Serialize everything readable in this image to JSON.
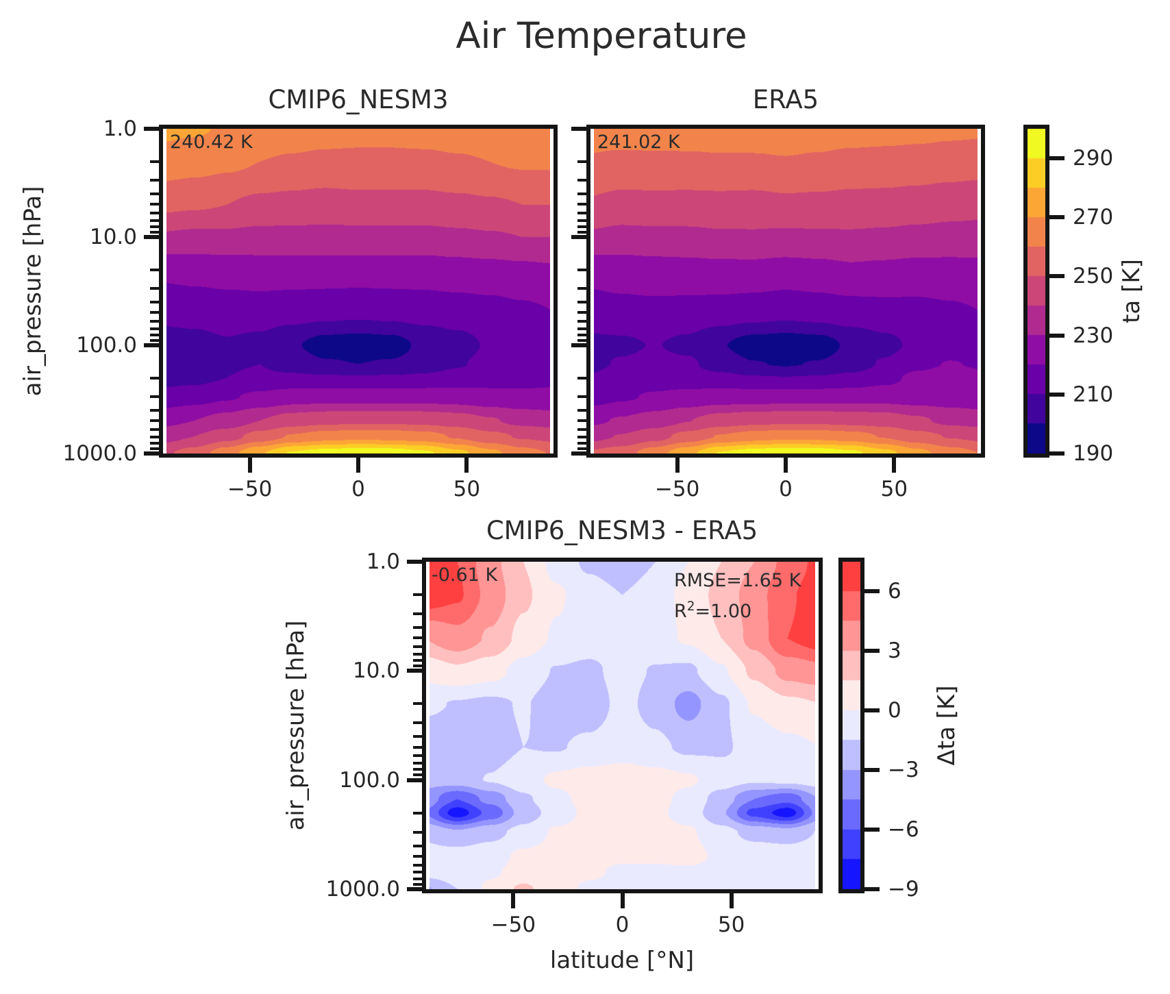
{
  "figure": {
    "title": "Air Temperature"
  },
  "axes_shared": {
    "ylabel": "air_pressure [hPa]",
    "xlabel": "latitude [°N]",
    "y_scale": "log",
    "y_tick_labels": [
      "1.0",
      "10.0",
      "100.0",
      "1000.0"
    ],
    "y_tick_values": [
      1,
      10,
      100,
      1000
    ],
    "x_tick_labels": [
      "−50",
      "0",
      "50"
    ],
    "x_tick_values": [
      -50,
      0,
      50
    ],
    "lat_range_deg": [
      -90,
      90
    ],
    "pressure_range_hpa": [
      1,
      1000
    ]
  },
  "panels": {
    "model": {
      "title": "CMIP6_NESM3",
      "mean_annotation": "240.42 K"
    },
    "reference": {
      "title": "ERA5",
      "mean_annotation": "241.02 K"
    },
    "difference": {
      "title": "CMIP6_NESM3 - ERA5",
      "mean_annotation": "-0.61 K",
      "rmse_annotation": "RMSE=1.65 K",
      "r2_base": "R",
      "r2_sup": "2",
      "r2_rest": "=1.00"
    }
  },
  "colorbars": {
    "ta": {
      "label": "ta [K]",
      "tick_labels": [
        "290",
        "270",
        "250",
        "230",
        "210",
        "190"
      ],
      "tick_values": [
        290,
        270,
        250,
        230,
        210,
        190
      ],
      "vmin": 190,
      "vmax": 300,
      "level_step": 10,
      "cmap": "plasma",
      "colors": [
        "#0d0887",
        "#41049d",
        "#6a00a8",
        "#8f0da4",
        "#b12a90",
        "#cc4778",
        "#e16462",
        "#f2844b",
        "#fca636",
        "#fcce25",
        "#f0f921"
      ]
    },
    "dta": {
      "label": "Δta [K]",
      "tick_labels": [
        "6",
        "3",
        "0",
        "−3",
        "−6",
        "−9"
      ],
      "tick_values": [
        6,
        3,
        0,
        -3,
        -6,
        -9
      ],
      "vmin": -9,
      "vmax": 7.5,
      "level_step": 1.5,
      "cmap": "bwr",
      "colors": [
        "#1515ff",
        "#4040ff",
        "#6a6aff",
        "#9595ff",
        "#bfbfff",
        "#eaeaff",
        "#ffeaea",
        "#ffbfbf",
        "#ff9595",
        "#ff6a6a",
        "#ff4040"
      ]
    }
  },
  "chart_data": [
    {
      "type": "heatmap",
      "subtype": "filled_contour",
      "name": "CMIP6_NESM3",
      "variable": "ta",
      "units": "K",
      "mean_value_k": 240.42,
      "cmap": "plasma",
      "levels": [
        190,
        200,
        210,
        220,
        230,
        240,
        250,
        260,
        270,
        280,
        290,
        300
      ],
      "lats": [
        -90,
        -75,
        -60,
        -45,
        -30,
        -15,
        0,
        15,
        30,
        45,
        60,
        75,
        90
      ],
      "pressure_levels_hpa": [
        1,
        2,
        5,
        10,
        20,
        50,
        100,
        150,
        200,
        300,
        500,
        700,
        1000
      ],
      "values": [
        [
          272,
          271,
          269,
          267,
          265,
          264,
          263,
          263,
          264,
          265,
          266,
          267,
          268
        ],
        [
          266,
          264,
          262,
          260,
          259,
          258,
          258,
          258,
          258,
          259,
          260,
          261,
          261
        ],
        [
          252,
          251,
          250,
          248,
          247,
          246,
          247,
          247,
          247,
          248,
          249,
          250,
          250
        ],
        [
          239,
          238,
          238,
          237,
          237,
          237,
          237,
          237,
          237,
          238,
          239,
          240,
          240
        ],
        [
          222,
          223,
          224,
          225,
          225,
          225,
          225,
          225,
          225,
          226,
          227,
          228,
          229
        ],
        [
          213,
          214,
          215,
          215,
          214,
          213,
          212,
          213,
          214,
          215,
          216,
          218,
          220
        ],
        [
          205,
          206,
          209,
          207,
          201,
          196,
          195,
          196,
          202,
          206,
          211,
          214,
          215
        ],
        [
          204,
          205,
          209,
          210,
          205,
          201,
          200,
          201,
          204,
          209,
          213,
          215,
          216
        ],
        [
          206,
          207,
          210,
          212,
          212,
          211,
          211,
          211,
          212,
          214,
          216,
          217,
          218
        ],
        [
          214,
          216,
          219,
          222,
          225,
          226,
          226,
          226,
          226,
          225,
          223,
          222,
          222
        ],
        [
          227,
          230,
          234,
          240,
          245,
          247,
          248,
          248,
          247,
          245,
          241,
          237,
          235
        ],
        [
          236,
          240,
          246,
          254,
          261,
          265,
          267,
          266,
          264,
          259,
          253,
          249,
          247
        ],
        [
          248,
          254,
          266,
          279,
          291,
          295,
          297,
          296,
          292,
          283,
          273,
          264,
          259
        ]
      ]
    },
    {
      "type": "heatmap",
      "subtype": "filled_contour",
      "name": "ERA5",
      "variable": "ta",
      "units": "K",
      "mean_value_k": 241.02,
      "cmap": "plasma",
      "levels": [
        190,
        200,
        210,
        220,
        230,
        240,
        250,
        260,
        270,
        280,
        290,
        300
      ],
      "lats": [
        -90,
        -75,
        -60,
        -45,
        -30,
        -15,
        0,
        15,
        30,
        45,
        60,
        75,
        90
      ],
      "pressure_levels_hpa": [
        1,
        2,
        5,
        10,
        20,
        50,
        100,
        150,
        200,
        300,
        500,
        700,
        1000
      ],
      "values": [
        [
          264.8,
          265.0,
          265.5,
          265.5,
          265.5,
          265.8,
          265.5,
          264.5,
          264.0,
          263.5,
          263.0,
          262.0,
          261.5
        ],
        [
          259.0,
          257.8,
          258.0,
          258.2,
          258.8,
          258.8,
          259.5,
          258.8,
          257.5,
          257.0,
          256.2,
          255.2,
          254.2
        ],
        [
          249.0,
          247.0,
          247.2,
          247.0,
          247.2,
          246.8,
          248.0,
          247.6,
          246.8,
          246.5,
          245.5,
          244.0,
          243.2
        ],
        [
          238.5,
          236.8,
          237.4,
          237.6,
          238.6,
          238.8,
          238.0,
          238.6,
          238.8,
          238.2,
          237.2,
          236.5,
          236.0
        ],
        [
          223.2,
          224.6,
          225.8,
          226.4,
          227.2,
          227.3,
          226.1,
          227.0,
          228.6,
          227.8,
          226.8,
          226.8,
          227.5
        ],
        [
          215.6,
          216.8,
          217.2,
          216.5,
          215.6,
          214.2,
          212.7,
          214.2,
          215.8,
          216.7,
          217.0,
          218.4,
          220.0
        ],
        [
          207.6,
          208.2,
          210.4,
          207.6,
          200.7,
          195.3,
          194.2,
          195.4,
          201.8,
          206.8,
          212.3,
          215.1,
          215.8
        ],
        [
          207.5,
          211.0,
          213.0,
          211.8,
          205.4,
          200.5,
          199.3,
          200.6,
          204.4,
          211.2,
          217.5,
          220.5,
          219.0
        ],
        [
          210.5,
          215.3,
          215.5,
          214.4,
          212.8,
          210.6,
          210.2,
          210.7,
          212.6,
          216.8,
          222.5,
          225.3,
          221.8
        ],
        [
          215.8,
          218.8,
          221.0,
          223.0,
          224.8,
          225.4,
          225.2,
          225.5,
          225.8,
          226.0,
          225.0,
          224.4,
          223.4
        ],
        [
          228.0,
          230.9,
          234.6,
          239.7,
          244.5,
          246.7,
          247.8,
          247.7,
          246.5,
          245.3,
          241.6,
          237.6,
          235.5
        ],
        [
          236.8,
          240.6,
          246.2,
          253.5,
          260.6,
          264.8,
          267.2,
          266.3,
          264.3,
          259.4,
          253.5,
          249.5,
          247.4
        ],
        [
          251.2,
          255.5,
          265.7,
          277.2,
          290.5,
          295.2,
          297.4,
          296.3,
          292.4,
          283.5,
          273.5,
          264.6,
          259.7
        ]
      ]
    },
    {
      "type": "heatmap",
      "subtype": "filled_contour",
      "name": "CMIP6_NESM3 - ERA5",
      "variable": "delta_ta",
      "units": "K",
      "mean_bias_k": -0.61,
      "rmse_k": 1.65,
      "r2": 1.0,
      "cmap": "bwr",
      "levels": [
        -9,
        -7.5,
        -6,
        -4.5,
        -3,
        -1.5,
        0,
        1.5,
        3,
        4.5,
        6,
        7.5
      ],
      "lats": [
        -90,
        -75,
        -60,
        -45,
        -30,
        -15,
        0,
        15,
        30,
        45,
        60,
        75,
        90
      ],
      "pressure_levels_hpa": [
        1,
        2,
        5,
        10,
        20,
        50,
        100,
        150,
        200,
        300,
        500,
        700,
        1000
      ],
      "values": [
        [
          7.2,
          6.0,
          3.5,
          1.5,
          -0.5,
          -1.8,
          -2.5,
          -1.5,
          0.0,
          1.5,
          3.0,
          5.0,
          6.5
        ],
        [
          7.0,
          6.2,
          4.0,
          1.8,
          0.2,
          -0.8,
          -1.5,
          -0.8,
          0.5,
          2.0,
          3.8,
          5.8,
          6.8
        ],
        [
          3.0,
          4.0,
          2.8,
          1.0,
          -0.2,
          -0.8,
          -1.0,
          -0.6,
          0.2,
          1.5,
          3.5,
          6.0,
          6.8
        ],
        [
          0.5,
          1.2,
          0.6,
          -0.6,
          -1.6,
          -1.8,
          -1.0,
          -1.6,
          -1.8,
          -0.2,
          1.8,
          3.5,
          4.0
        ],
        [
          -1.2,
          -1.6,
          -1.8,
          -1.4,
          -2.2,
          -2.3,
          -1.1,
          -2.0,
          -3.6,
          -1.8,
          0.2,
          1.2,
          1.5
        ],
        [
          -2.6,
          -2.8,
          -2.2,
          -1.5,
          -1.6,
          -1.2,
          -0.7,
          -1.2,
          -1.8,
          -1.7,
          -1.0,
          -0.4,
          0.0
        ],
        [
          -2.6,
          -2.2,
          -1.4,
          -0.6,
          0.3,
          0.7,
          0.8,
          0.6,
          0.2,
          -0.8,
          -1.3,
          -1.1,
          -0.8
        ],
        [
          -3.5,
          -6.0,
          -4.0,
          -1.8,
          -0.4,
          0.5,
          0.7,
          0.4,
          -0.4,
          -2.2,
          -4.5,
          -5.5,
          -3.0
        ],
        [
          -4.5,
          -8.3,
          -5.5,
          -2.4,
          -0.8,
          0.4,
          0.8,
          0.3,
          -0.6,
          -2.8,
          -6.5,
          -8.3,
          -3.8
        ],
        [
          -1.8,
          -2.8,
          -2.0,
          -1.0,
          0.2,
          0.6,
          0.8,
          0.5,
          0.2,
          -1.0,
          -2.0,
          -2.4,
          -1.4
        ],
        [
          -1.0,
          -0.9,
          -0.6,
          0.3,
          0.5,
          0.3,
          0.2,
          0.3,
          0.5,
          -0.3,
          -0.6,
          -0.6,
          -0.5
        ],
        [
          -0.8,
          -0.6,
          -0.2,
          0.5,
          0.4,
          0.2,
          -0.2,
          -0.3,
          -0.3,
          -0.4,
          -0.5,
          -0.5,
          -0.4
        ],
        [
          -3.2,
          -1.5,
          0.3,
          1.8,
          0.5,
          -0.2,
          -0.4,
          -0.3,
          -0.4,
          -0.5,
          -0.5,
          -0.6,
          -0.7
        ]
      ]
    }
  ]
}
